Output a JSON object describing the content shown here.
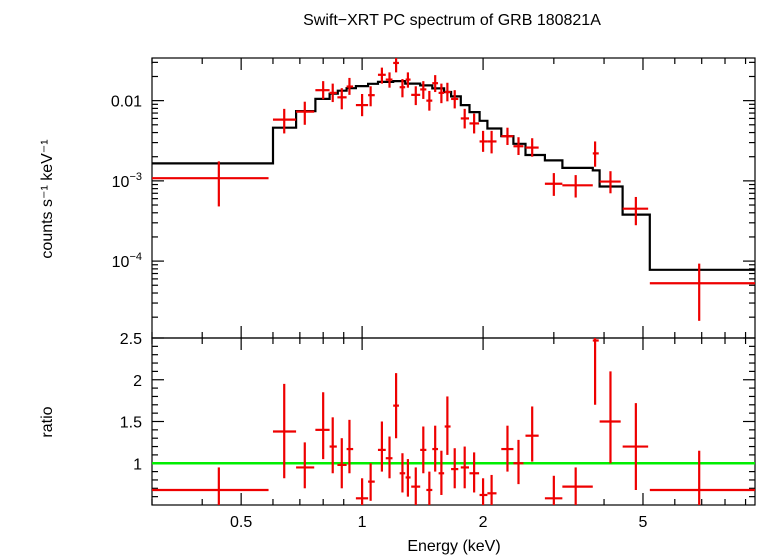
{
  "chart_data": {
    "type": "scatter",
    "title": "Swift−XRT PC spectrum of GRB 180821A",
    "xlabel": "Energy (keV)",
    "xscale": "log",
    "xlim": [
      0.3,
      9.5
    ],
    "x_tick_labels": [
      "0.5",
      "1",
      "2",
      "5"
    ],
    "colors": {
      "data": "#ee0000",
      "model": "#000000",
      "unity": "#00ee00"
    },
    "panels": [
      {
        "name": "spectrum",
        "ylabel": "counts s⁻¹ keV⁻¹",
        "yscale": "log",
        "ylim": [
          1.1e-05,
          0.034
        ],
        "y_ticks": [
          {
            "value": 0.01,
            "label": "0.01"
          },
          {
            "value": 0.001,
            "label": "10",
            "sup": "−3"
          },
          {
            "value": 0.0001,
            "label": "10",
            "sup": "−4"
          }
        ],
        "data_points": [
          {
            "x": 0.44,
            "xlo": 0.3,
            "xhi": 0.585,
            "y": 0.00108,
            "ylo": 0.00048,
            "yhi": 0.00175
          },
          {
            "x": 0.64,
            "xlo": 0.6,
            "xhi": 0.685,
            "y": 0.0058,
            "ylo": 0.0039,
            "yhi": 0.0079
          },
          {
            "x": 0.72,
            "xlo": 0.685,
            "xhi": 0.76,
            "y": 0.0073,
            "ylo": 0.005,
            "yhi": 0.0097
          },
          {
            "x": 0.8,
            "xlo": 0.765,
            "xhi": 0.83,
            "y": 0.0135,
            "ylo": 0.0104,
            "yhi": 0.0175
          },
          {
            "x": 0.845,
            "xlo": 0.83,
            "xhi": 0.865,
            "y": 0.0125,
            "ylo": 0.0096,
            "yhi": 0.0163
          },
          {
            "x": 0.89,
            "xlo": 0.868,
            "xhi": 0.915,
            "y": 0.011,
            "ylo": 0.0078,
            "yhi": 0.0143
          },
          {
            "x": 0.93,
            "xlo": 0.915,
            "xhi": 0.95,
            "y": 0.015,
            "ylo": 0.0118,
            "yhi": 0.0192
          },
          {
            "x": 1.0,
            "xlo": 0.965,
            "xhi": 1.035,
            "y": 0.0088,
            "ylo": 0.0064,
            "yhi": 0.0121
          },
          {
            "x": 1.05,
            "xlo": 1.035,
            "xhi": 1.075,
            "y": 0.0117,
            "ylo": 0.0085,
            "yhi": 0.0151
          },
          {
            "x": 1.12,
            "xlo": 1.095,
            "xhi": 1.145,
            "y": 0.021,
            "ylo": 0.0163,
            "yhi": 0.0258
          },
          {
            "x": 1.17,
            "xlo": 1.145,
            "xhi": 1.19,
            "y": 0.0183,
            "ylo": 0.0145,
            "yhi": 0.0225
          },
          {
            "x": 1.215,
            "xlo": 1.195,
            "xhi": 1.235,
            "y": 0.0295,
            "ylo": 0.0225,
            "yhi": 0.034
          },
          {
            "x": 1.26,
            "xlo": 1.24,
            "xhi": 1.28,
            "y": 0.0147,
            "ylo": 0.011,
            "yhi": 0.0186
          },
          {
            "x": 1.3,
            "xlo": 1.283,
            "xhi": 1.32,
            "y": 0.0183,
            "ylo": 0.0145,
            "yhi": 0.0225
          },
          {
            "x": 1.36,
            "xlo": 1.325,
            "xhi": 1.395,
            "y": 0.0118,
            "ylo": 0.0088,
            "yhi": 0.0151
          },
          {
            "x": 1.42,
            "xlo": 1.395,
            "xhi": 1.445,
            "y": 0.0138,
            "ylo": 0.0105,
            "yhi": 0.0175
          },
          {
            "x": 1.47,
            "xlo": 1.445,
            "xhi": 1.495,
            "y": 0.01,
            "ylo": 0.0075,
            "yhi": 0.0132
          },
          {
            "x": 1.52,
            "xlo": 1.495,
            "xhi": 1.545,
            "y": 0.0165,
            "ylo": 0.0128,
            "yhi": 0.0208
          },
          {
            "x": 1.575,
            "xlo": 1.55,
            "xhi": 1.6,
            "y": 0.0125,
            "ylo": 0.0093,
            "yhi": 0.0163
          },
          {
            "x": 1.63,
            "xlo": 1.605,
            "xhi": 1.66,
            "y": 0.0128,
            "ylo": 0.0098,
            "yhi": 0.0167
          },
          {
            "x": 1.7,
            "xlo": 1.665,
            "xhi": 1.735,
            "y": 0.0105,
            "ylo": 0.008,
            "yhi": 0.0135
          },
          {
            "x": 1.8,
            "xlo": 1.76,
            "xhi": 1.845,
            "y": 0.006,
            "ylo": 0.0045,
            "yhi": 0.0079
          },
          {
            "x": 1.9,
            "xlo": 1.85,
            "xhi": 1.955,
            "y": 0.0052,
            "ylo": 0.0039,
            "yhi": 0.0069
          },
          {
            "x": 2.0,
            "xlo": 1.96,
            "xhi": 2.05,
            "y": 0.0031,
            "ylo": 0.0023,
            "yhi": 0.0042
          },
          {
            "x": 2.1,
            "xlo": 2.05,
            "xhi": 2.16,
            "y": 0.0031,
            "ylo": 0.0022,
            "yhi": 0.0042
          },
          {
            "x": 2.3,
            "xlo": 2.22,
            "xhi": 2.38,
            "y": 0.0036,
            "ylo": 0.0028,
            "yhi": 0.0046
          },
          {
            "x": 2.45,
            "xlo": 2.38,
            "xhi": 2.52,
            "y": 0.0027,
            "ylo": 0.0021,
            "yhi": 0.0035
          },
          {
            "x": 2.65,
            "xlo": 2.55,
            "xhi": 2.75,
            "y": 0.0026,
            "ylo": 0.002,
            "yhi": 0.0034
          },
          {
            "x": 3.0,
            "xlo": 2.85,
            "xhi": 3.15,
            "y": 0.00092,
            "ylo": 0.00065,
            "yhi": 0.00125
          },
          {
            "x": 3.4,
            "xlo": 3.15,
            "xhi": 3.75,
            "y": 0.00088,
            "ylo": 0.00062,
            "yhi": 0.00118
          },
          {
            "x": 3.8,
            "xlo": 3.75,
            "xhi": 3.88,
            "y": 0.0022,
            "ylo": 0.0015,
            "yhi": 0.0031
          },
          {
            "x": 4.15,
            "xlo": 3.9,
            "xhi": 4.4,
            "y": 0.00098,
            "ylo": 0.0007,
            "yhi": 0.00132
          },
          {
            "x": 4.8,
            "xlo": 4.45,
            "xhi": 5.15,
            "y": 0.00045,
            "ylo": 0.00028,
            "yhi": 0.00063
          },
          {
            "x": 6.9,
            "xlo": 5.2,
            "xhi": 9.5,
            "y": 5.3e-05,
            "ylo": 1.8e-05,
            "yhi": 9.3e-05
          }
        ],
        "model_steps": [
          {
            "x0": 0.3,
            "x1": 0.6,
            "y": 0.00165
          },
          {
            "x0": 0.6,
            "x1": 0.685,
            "y": 0.0046
          },
          {
            "x0": 0.685,
            "x1": 0.765,
            "y": 0.0074
          },
          {
            "x0": 0.765,
            "x1": 0.83,
            "y": 0.0105
          },
          {
            "x0": 0.83,
            "x1": 0.87,
            "y": 0.0122
          },
          {
            "x0": 0.87,
            "x1": 0.915,
            "y": 0.0133
          },
          {
            "x0": 0.915,
            "x1": 0.965,
            "y": 0.0143
          },
          {
            "x0": 0.965,
            "x1": 1.035,
            "y": 0.0152
          },
          {
            "x0": 1.035,
            "x1": 1.095,
            "y": 0.0162
          },
          {
            "x0": 1.095,
            "x1": 1.195,
            "y": 0.0171
          },
          {
            "x0": 1.195,
            "x1": 1.28,
            "y": 0.0175
          },
          {
            "x0": 1.28,
            "x1": 1.395,
            "y": 0.0163
          },
          {
            "x0": 1.395,
            "x1": 1.495,
            "y": 0.0155
          },
          {
            "x0": 1.495,
            "x1": 1.6,
            "y": 0.0142
          },
          {
            "x0": 1.6,
            "x1": 1.665,
            "y": 0.0128
          },
          {
            "x0": 1.665,
            "x1": 1.76,
            "y": 0.0113
          },
          {
            "x0": 1.76,
            "x1": 1.85,
            "y": 0.0088
          },
          {
            "x0": 1.85,
            "x1": 1.96,
            "y": 0.0072
          },
          {
            "x0": 1.96,
            "x1": 2.05,
            "y": 0.0056
          },
          {
            "x0": 2.05,
            "x1": 2.22,
            "y": 0.0045
          },
          {
            "x0": 2.22,
            "x1": 2.38,
            "y": 0.0036
          },
          {
            "x0": 2.38,
            "x1": 2.55,
            "y": 0.0029
          },
          {
            "x0": 2.55,
            "x1": 2.85,
            "y": 0.0021
          },
          {
            "x0": 2.85,
            "x1": 3.15,
            "y": 0.0018
          },
          {
            "x0": 3.15,
            "x1": 3.75,
            "y": 0.00145
          },
          {
            "x0": 3.75,
            "x1": 3.9,
            "y": 0.00135
          },
          {
            "x0": 3.9,
            "x1": 4.45,
            "y": 0.00085
          },
          {
            "x0": 4.45,
            "x1": 5.2,
            "y": 0.00038
          },
          {
            "x0": 5.2,
            "x1": 9.5,
            "y": 7.8e-05
          }
        ]
      },
      {
        "name": "ratio",
        "ylabel": "ratio",
        "yscale": "linear",
        "ylim": [
          0.5,
          2.5
        ],
        "y_ticks": [
          {
            "value": 1,
            "label": "1"
          },
          {
            "value": 1.5,
            "label": "1.5"
          },
          {
            "value": 2,
            "label": "2"
          },
          {
            "value": 2.5,
            "label": "2.5"
          }
        ],
        "reference_line": 1.0,
        "data_points": [
          {
            "x": 0.44,
            "xlo": 0.3,
            "xhi": 0.585,
            "y": 0.68,
            "ylo": 0.42,
            "yhi": 0.95
          },
          {
            "x": 0.64,
            "xlo": 0.6,
            "xhi": 0.685,
            "y": 1.38,
            "ylo": 0.82,
            "yhi": 1.95
          },
          {
            "x": 0.72,
            "xlo": 0.685,
            "xhi": 0.76,
            "y": 0.95,
            "ylo": 0.7,
            "yhi": 1.25
          },
          {
            "x": 0.8,
            "xlo": 0.765,
            "xhi": 0.83,
            "y": 1.4,
            "ylo": 1.05,
            "yhi": 1.85
          },
          {
            "x": 0.845,
            "xlo": 0.83,
            "xhi": 0.865,
            "y": 1.2,
            "ylo": 0.88,
            "yhi": 1.55
          },
          {
            "x": 0.89,
            "xlo": 0.868,
            "xhi": 0.915,
            "y": 0.98,
            "ylo": 0.7,
            "yhi": 1.3
          },
          {
            "x": 0.93,
            "xlo": 0.915,
            "xhi": 0.95,
            "y": 1.17,
            "ylo": 0.88,
            "yhi": 1.52
          },
          {
            "x": 1.0,
            "xlo": 0.965,
            "xhi": 1.035,
            "y": 0.58,
            "ylo": 0.45,
            "yhi": 0.82
          },
          {
            "x": 1.05,
            "xlo": 1.035,
            "xhi": 1.075,
            "y": 0.78,
            "ylo": 0.55,
            "yhi": 1.0
          },
          {
            "x": 1.12,
            "xlo": 1.095,
            "xhi": 1.145,
            "y": 1.16,
            "ylo": 0.9,
            "yhi": 1.5
          },
          {
            "x": 1.17,
            "xlo": 1.145,
            "xhi": 1.19,
            "y": 1.06,
            "ylo": 0.82,
            "yhi": 1.32
          },
          {
            "x": 1.215,
            "xlo": 1.195,
            "xhi": 1.235,
            "y": 1.69,
            "ylo": 1.3,
            "yhi": 2.08
          },
          {
            "x": 1.26,
            "xlo": 1.24,
            "xhi": 1.28,
            "y": 0.88,
            "ylo": 0.65,
            "yhi": 1.12
          },
          {
            "x": 1.3,
            "xlo": 1.283,
            "xhi": 1.32,
            "y": 0.83,
            "ylo": 0.6,
            "yhi": 1.05
          },
          {
            "x": 1.36,
            "xlo": 1.325,
            "xhi": 1.395,
            "y": 0.72,
            "ylo": 0.5,
            "yhi": 0.95
          },
          {
            "x": 1.42,
            "xlo": 1.395,
            "xhi": 1.445,
            "y": 1.16,
            "ylo": 0.88,
            "yhi": 1.44
          },
          {
            "x": 1.47,
            "xlo": 1.445,
            "xhi": 1.495,
            "y": 0.68,
            "ylo": 0.48,
            "yhi": 0.9
          },
          {
            "x": 1.52,
            "xlo": 1.495,
            "xhi": 1.545,
            "y": 1.17,
            "ylo": 0.9,
            "yhi": 1.45
          },
          {
            "x": 1.575,
            "xlo": 1.55,
            "xhi": 1.6,
            "y": 0.88,
            "ylo": 0.62,
            "yhi": 1.15
          },
          {
            "x": 1.63,
            "xlo": 1.605,
            "xhi": 1.66,
            "y": 1.44,
            "ylo": 1.1,
            "yhi": 1.8
          },
          {
            "x": 1.7,
            "xlo": 1.665,
            "xhi": 1.735,
            "y": 0.93,
            "ylo": 0.7,
            "yhi": 1.18
          },
          {
            "x": 1.8,
            "xlo": 1.76,
            "xhi": 1.845,
            "y": 0.95,
            "ylo": 0.7,
            "yhi": 1.2
          },
          {
            "x": 1.9,
            "xlo": 1.85,
            "xhi": 1.955,
            "y": 0.88,
            "ylo": 0.65,
            "yhi": 1.13
          },
          {
            "x": 2.0,
            "xlo": 1.96,
            "xhi": 2.05,
            "y": 0.62,
            "ylo": 0.45,
            "yhi": 0.82
          },
          {
            "x": 2.1,
            "xlo": 2.05,
            "xhi": 2.16,
            "y": 0.64,
            "ylo": 0.45,
            "yhi": 0.86
          },
          {
            "x": 2.3,
            "xlo": 2.22,
            "xhi": 2.38,
            "y": 1.17,
            "ylo": 0.9,
            "yhi": 1.45
          },
          {
            "x": 2.45,
            "xlo": 2.38,
            "xhi": 2.52,
            "y": 1.0,
            "ylo": 0.75,
            "yhi": 1.28
          },
          {
            "x": 2.65,
            "xlo": 2.55,
            "xhi": 2.75,
            "y": 1.33,
            "ylo": 1.02,
            "yhi": 1.68
          },
          {
            "x": 3.0,
            "xlo": 2.85,
            "xhi": 3.15,
            "y": 0.58,
            "ylo": 0.45,
            "yhi": 0.85
          },
          {
            "x": 3.4,
            "xlo": 3.15,
            "xhi": 3.75,
            "y": 0.72,
            "ylo": 0.5,
            "yhi": 0.95
          },
          {
            "x": 3.8,
            "xlo": 3.75,
            "xhi": 3.88,
            "y": 2.47,
            "ylo": 1.7,
            "yhi": 2.5
          },
          {
            "x": 4.15,
            "xlo": 3.9,
            "xhi": 4.4,
            "y": 1.5,
            "ylo": 1.0,
            "yhi": 2.1
          },
          {
            "x": 4.8,
            "xlo": 4.45,
            "xhi": 5.15,
            "y": 1.2,
            "ylo": 0.68,
            "yhi": 1.72
          },
          {
            "x": 6.9,
            "xlo": 5.2,
            "xhi": 9.5,
            "y": 0.68,
            "ylo": 0.45,
            "yhi": 1.15
          }
        ]
      }
    ]
  }
}
